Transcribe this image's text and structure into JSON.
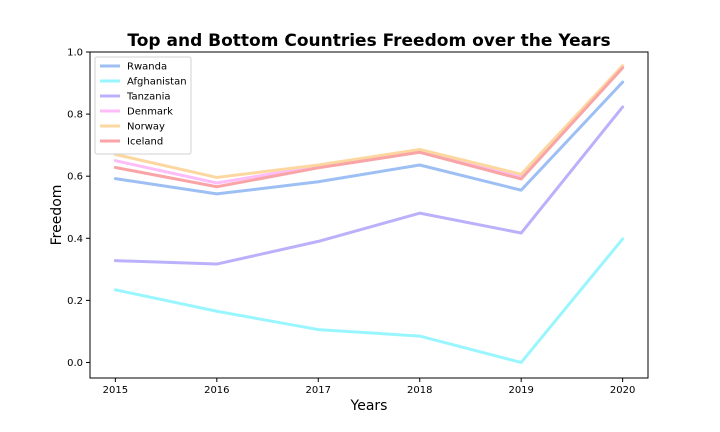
{
  "chart_data": {
    "type": "line",
    "title": "Top and Bottom Countries Freedom over the Years",
    "xlabel": "Years",
    "ylabel": "Freedom",
    "x": [
      2015,
      2016,
      2017,
      2018,
      2019,
      2020
    ],
    "xlim": [
      2014.75,
      2020.25
    ],
    "ylim": [
      -0.05,
      1.0
    ],
    "yticks": [
      0.0,
      0.2,
      0.4,
      0.6,
      0.8,
      1.0
    ],
    "ytick_labels": [
      "0.0",
      "0.2",
      "0.4",
      "0.6",
      "0.8",
      "1.0"
    ],
    "xtick_labels": [
      "2015",
      "2016",
      "2017",
      "2018",
      "2019",
      "2020"
    ],
    "grid": false,
    "legend_position": "top-left",
    "series": [
      {
        "name": "Rwanda",
        "color": "#9dbff4",
        "values": [
          0.592,
          0.543,
          0.582,
          0.636,
          0.555,
          0.903
        ]
      },
      {
        "name": "Afghanistan",
        "color": "#99f6ff",
        "values": [
          0.234,
          0.165,
          0.106,
          0.085,
          0.0,
          0.398
        ]
      },
      {
        "name": "Tanzania",
        "color": "#bbb1fb",
        "values": [
          0.328,
          0.317,
          0.39,
          0.481,
          0.417,
          0.823
        ]
      },
      {
        "name": "Denmark",
        "color": "#fcbdf9",
        "values": [
          0.65,
          0.578,
          0.633,
          0.678,
          0.597,
          0.952
        ]
      },
      {
        "name": "Norway",
        "color": "#fdd7a0",
        "values": [
          0.67,
          0.596,
          0.636,
          0.686,
          0.606,
          0.956
        ]
      },
      {
        "name": "Iceland",
        "color": "#f9a5a7",
        "values": [
          0.628,
          0.566,
          0.627,
          0.677,
          0.591,
          0.949
        ]
      }
    ]
  }
}
